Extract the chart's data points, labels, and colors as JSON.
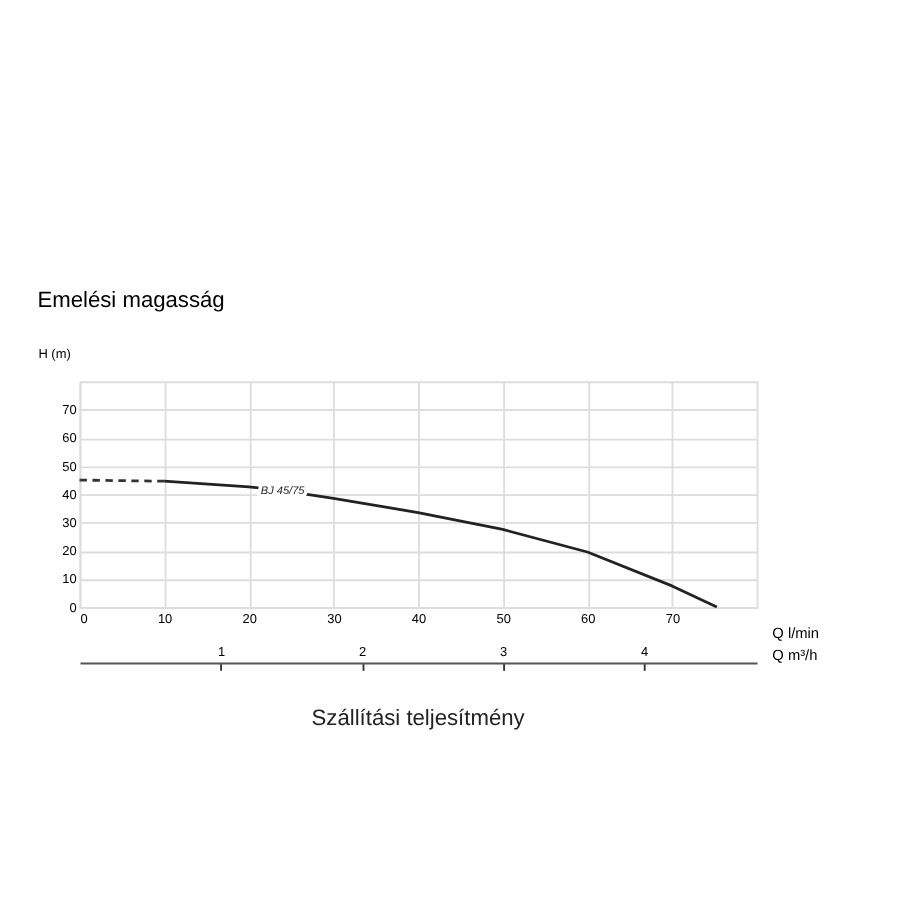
{
  "chart_data": {
    "type": "line",
    "title": "Emelési magasság",
    "xlabel": "Q l/min",
    "ylabel": "H (m)",
    "x2label": "Q m³/h",
    "annotations": [
      "Szállítási teljesítmény"
    ],
    "series": [
      {
        "color": "#333333",
        "line_style": "dashed",
        "x": [
          0,
          10
        ],
        "values": [
          45,
          44.6
        ]
      },
      {
        "name": "BJ 45/75",
        "color": "#222222",
        "line_style": "solid",
        "x": [
          10,
          20,
          24,
          30,
          40,
          50,
          60,
          70,
          75.3
        ],
        "values": [
          44.6,
          42.6,
          41.3,
          38.5,
          33.5,
          27.5,
          19.5,
          7.5,
          0
        ]
      }
    ],
    "xlim": [
      0,
      80
    ],
    "xticks": [
      0,
      10,
      20,
      30,
      40,
      50,
      60,
      70
    ],
    "ylim": [
      0,
      80
    ],
    "yticks": [
      0,
      10,
      20,
      30,
      40,
      50,
      60,
      70
    ],
    "x2lim": [
      0,
      4.8
    ],
    "x2ticks": [
      1,
      2,
      3,
      4
    ],
    "grid": true,
    "marker": "none"
  }
}
